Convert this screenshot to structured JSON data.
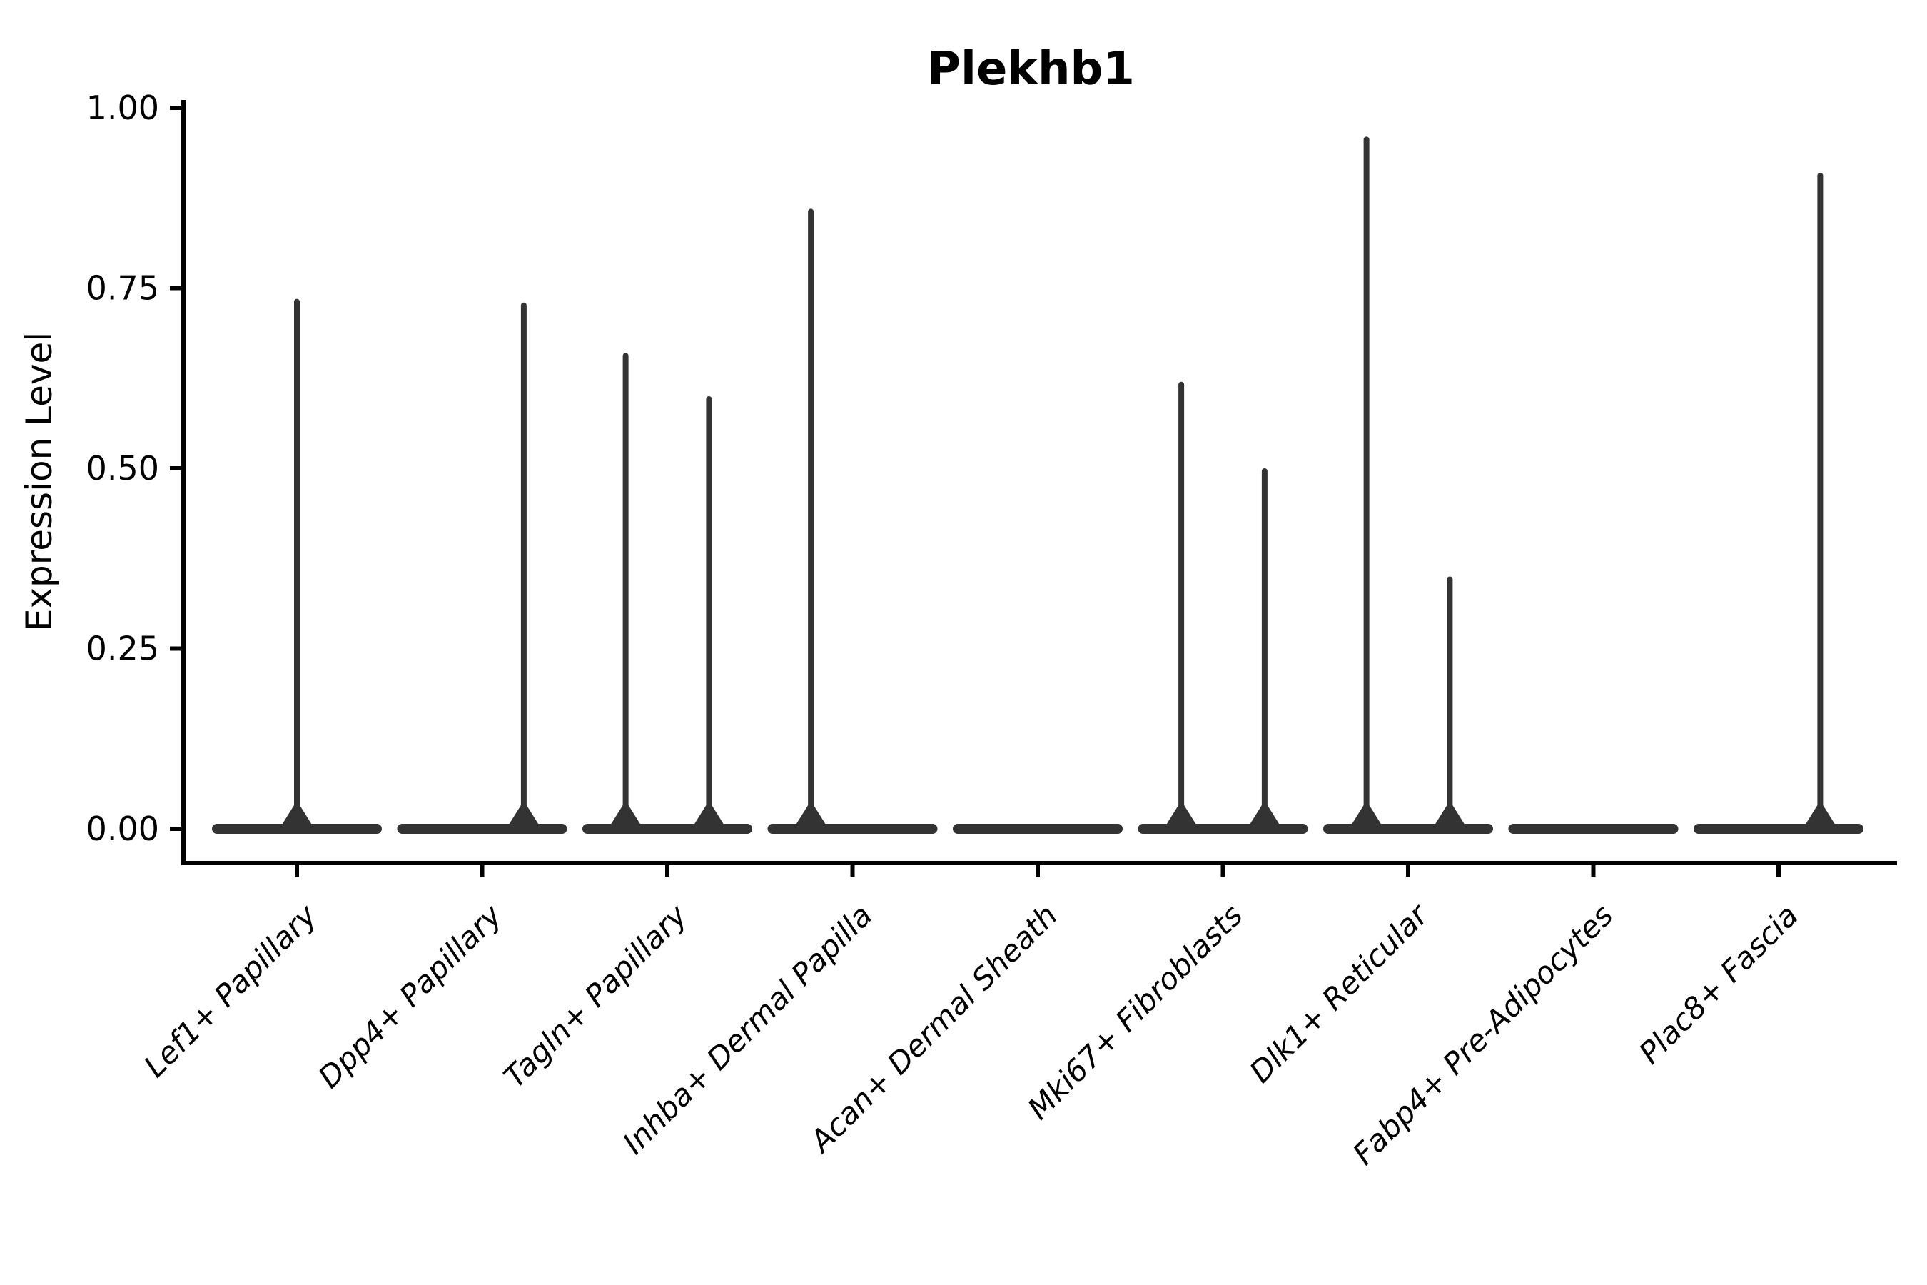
{
  "chart_data": {
    "type": "violin",
    "title": "Plekhb1",
    "xlabel": "",
    "ylabel": "Expression Level",
    "ylim": [
      0,
      1.0
    ],
    "grid": false,
    "legend": null,
    "ytick_values": [
      0.0,
      0.25,
      0.5,
      0.75,
      1.0
    ],
    "ytick_labels": [
      "0.00",
      "0.25",
      "0.50",
      "0.75",
      "1.00"
    ],
    "categories": [
      "Lef1+ Papillary",
      "Dpp4+ Papillary",
      "Tagln+ Papillary",
      "Inhba+ Dermal Papilla",
      "Acan+ Dermal Sheath",
      "Mki67+ Fibroblasts",
      "Dlk1+ Reticular",
      "Fabp4+ Pre-Adipocytes",
      "Plac8+ Fascia"
    ],
    "violins": [
      {
        "category": "Lef1+ Papillary",
        "base_value": 0,
        "spikes": [
          {
            "offset": 0.0,
            "max": 0.735
          }
        ]
      },
      {
        "category": "Dpp4+ Papillary",
        "base_value": 0,
        "spikes": [
          {
            "offset": 0.225,
            "max": 0.73
          }
        ]
      },
      {
        "category": "Tagln+ Papillary",
        "base_value": 0,
        "spikes": [
          {
            "offset": -0.225,
            "max": 0.66
          },
          {
            "offset": 0.225,
            "max": 0.6
          }
        ]
      },
      {
        "category": "Inhba+ Dermal Papilla",
        "base_value": 0,
        "spikes": [
          {
            "offset": -0.225,
            "max": 0.86
          }
        ]
      },
      {
        "category": "Acan+ Dermal Sheath",
        "base_value": 0,
        "spikes": []
      },
      {
        "category": "Mki67+ Fibroblasts",
        "base_value": 0,
        "spikes": [
          {
            "offset": -0.225,
            "max": 0.62
          },
          {
            "offset": 0.225,
            "max": 0.5
          }
        ]
      },
      {
        "category": "Dlk1+ Reticular",
        "base_value": 0,
        "spikes": [
          {
            "offset": -0.225,
            "max": 0.96
          },
          {
            "offset": 0.225,
            "max": 0.35
          }
        ]
      },
      {
        "category": "Fabp4+ Pre-Adipocytes",
        "base_value": 0,
        "spikes": []
      },
      {
        "category": "Plac8+ Fascia",
        "base_value": 0,
        "spikes": [
          {
            "offset": 0.225,
            "max": 0.91
          }
        ]
      }
    ],
    "colors": {
      "violin": "#333333",
      "axis": "#000000",
      "text": "#000000",
      "background": "#ffffff"
    }
  }
}
